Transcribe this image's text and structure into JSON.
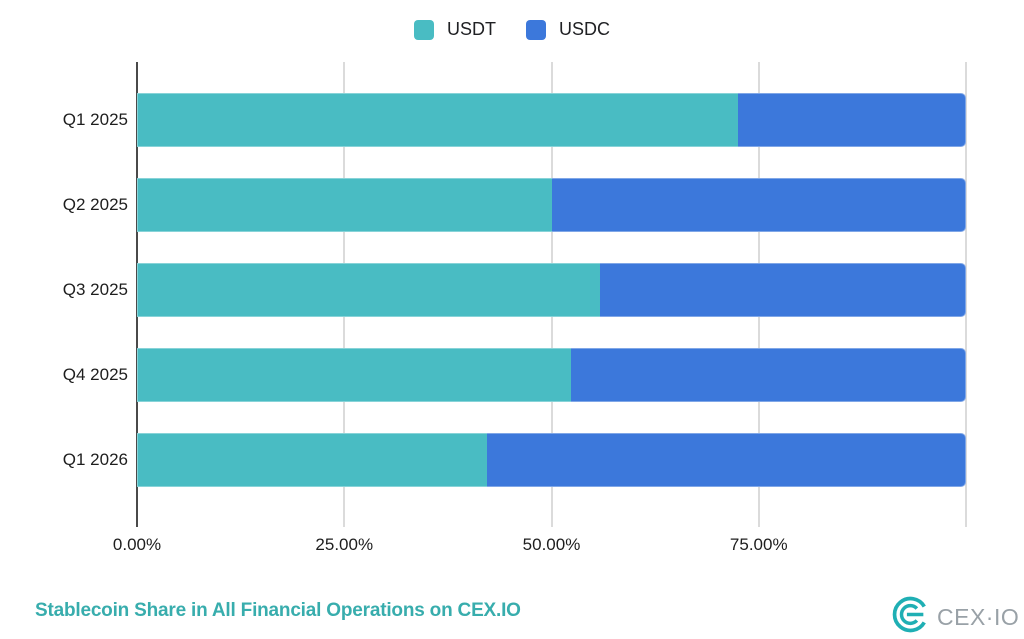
{
  "legend": {
    "items": [
      {
        "label": "USDT",
        "color": "#49BCC3"
      },
      {
        "label": "USDC",
        "color": "#3C78DB"
      }
    ]
  },
  "chart_data": {
    "type": "bar",
    "orientation": "horizontal",
    "stacked": true,
    "unit": "percent",
    "categories": [
      "Q1 2025",
      "Q2 2025",
      "Q3 2025",
      "Q4 2025",
      "Q1 2026"
    ],
    "series": [
      {
        "name": "USDT",
        "color": "#49BCC3",
        "values": [
          72.5,
          50.0,
          55.9,
          52.4,
          42.2
        ]
      },
      {
        "name": "USDC",
        "color": "#3C78DB",
        "values": [
          27.5,
          50.0,
          44.1,
          47.6,
          57.8
        ]
      }
    ],
    "xlim": [
      0,
      100
    ],
    "x_ticks": [
      {
        "value": 0,
        "label": "0.00%"
      },
      {
        "value": 25,
        "label": "25.00%"
      },
      {
        "value": 50,
        "label": "50.00%"
      },
      {
        "value": 75,
        "label": "75.00%"
      },
      {
        "value": 100,
        "label": ""
      }
    ],
    "grid": true,
    "legend_position": "top"
  },
  "footer": {
    "title": "Stablecoin Share in All Financial Operations on CEX.IO",
    "title_color": "#38ADAD",
    "logo_text": "CEX·IO",
    "logo_mark_color": "#1FAFB4"
  }
}
